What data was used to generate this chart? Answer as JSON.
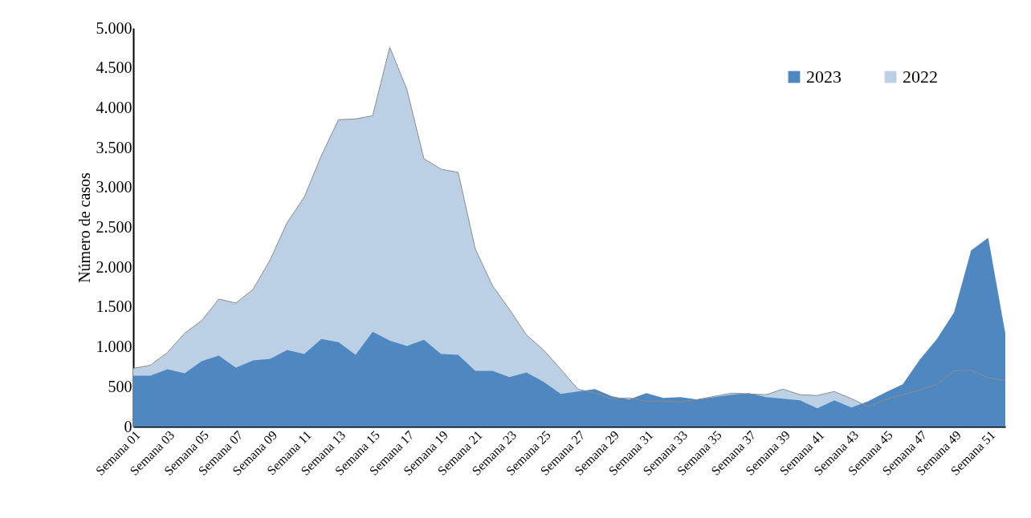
{
  "chart_data": {
    "type": "area",
    "ylabel": "Número de casos",
    "categories": [
      "Semana 01",
      null,
      "Semana 03",
      null,
      "Semana 05",
      null,
      "Semana 07",
      null,
      "Semana 09",
      null,
      "Semana 11",
      null,
      "Semana 13",
      null,
      "Semana 15",
      null,
      "Semana 17",
      null,
      "Semana 19",
      null,
      "Semana 21",
      null,
      "Semana 23",
      null,
      "Semana 25",
      null,
      "Semana 27",
      null,
      "Semana 29",
      null,
      "Semana 31",
      null,
      "Semana 33",
      null,
      "Semana 35",
      null,
      "Semana 37",
      null,
      "Semana 39",
      null,
      "Semana 41",
      null,
      "Semana 43",
      null,
      "Semana 45",
      null,
      "Semana 47",
      null,
      "Semana 49",
      null,
      "Semana 51",
      null
    ],
    "series": [
      {
        "name": "2023",
        "color": "#4f88c0",
        "values": [
          640,
          640,
          720,
          670,
          820,
          890,
          740,
          830,
          850,
          960,
          910,
          1100,
          1060,
          900,
          1190,
          1080,
          1010,
          1090,
          910,
          900,
          700,
          700,
          620,
          680,
          560,
          410,
          440,
          470,
          380,
          340,
          420,
          360,
          370,
          340,
          370,
          400,
          420,
          370,
          350,
          330,
          230,
          330,
          240,
          320,
          430,
          530,
          840,
          1100,
          1430,
          2210,
          2370,
          1170
        ]
      },
      {
        "name": "2022",
        "color": "#bcd0e5",
        "values": [
          730,
          770,
          930,
          1170,
          1330,
          1600,
          1550,
          1720,
          2090,
          2560,
          2880,
          3400,
          3850,
          3860,
          3900,
          4760,
          4230,
          3360,
          3230,
          3190,
          2230,
          1770,
          1470,
          1150,
          960,
          720,
          470,
          420,
          350,
          360,
          320,
          320,
          310,
          340,
          380,
          420,
          410,
          400,
          470,
          400,
          390,
          440,
          350,
          250,
          340,
          400,
          460,
          530,
          700,
          710,
          610,
          580
        ]
      }
    ],
    "ylim": [
      0,
      5000
    ],
    "yticks": [
      0,
      500,
      {
        "value": 1000,
        "label": "1.000"
      },
      {
        "value": 1500,
        "label": "1.500"
      },
      {
        "value": 2000,
        "label": "2.000"
      },
      {
        "value": 2500,
        "label": "2.500"
      },
      {
        "value": 3000,
        "label": "3.000"
      },
      {
        "value": 3500,
        "label": "3.500"
      },
      {
        "value": 4000,
        "label": "4.000"
      },
      {
        "value": 4500,
        "label": "4.500"
      },
      {
        "value": 5000,
        "label": "5.000"
      }
    ],
    "grid": false,
    "legend": "top right"
  }
}
